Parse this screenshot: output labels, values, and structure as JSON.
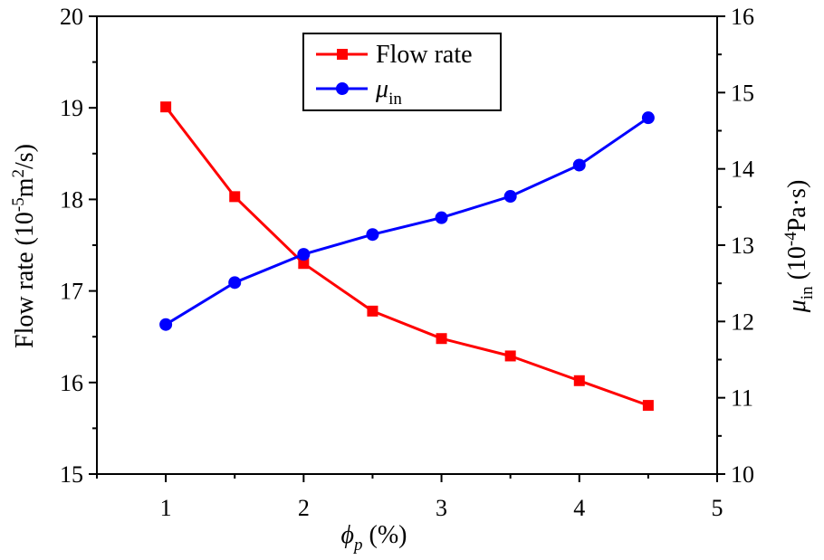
{
  "chart_data": {
    "type": "line",
    "x": [
      1,
      1.5,
      2,
      2.5,
      3,
      3.5,
      4,
      4.5
    ],
    "xlim": [
      0.5,
      5
    ],
    "x_ticks": [
      1,
      2,
      3,
      4,
      5
    ],
    "xlabel": {
      "main": "ϕ",
      "sub": "p",
      "rest": " (%)"
    },
    "grid": false,
    "legend_position": "top-center",
    "series": [
      {
        "name": "Flow rate",
        "axis": "left",
        "color": "#ff0000",
        "marker": "square",
        "values": [
          19.01,
          18.03,
          17.3,
          16.78,
          16.48,
          16.29,
          16.02,
          15.75
        ]
      },
      {
        "name": "μin",
        "name_main": "μ",
        "name_sub": "in",
        "axis": "right",
        "color": "#0000ff",
        "marker": "circle",
        "values": [
          11.96,
          12.51,
          12.88,
          13.14,
          13.36,
          13.64,
          14.05,
          14.67
        ]
      }
    ],
    "left_axis": {
      "label": {
        "pre": "Flow rate (10",
        "sup1": "-5",
        "mid": "m",
        "sup2": "2",
        "post": "/s)"
      },
      "ylim": [
        15,
        20
      ],
      "ticks": [
        15,
        16,
        17,
        18,
        19,
        20
      ]
    },
    "right_axis": {
      "label": {
        "main": "μ",
        "sub": "in",
        "pre": " (10",
        "sup": "-4",
        "post": "Pa·s)"
      },
      "ylim": [
        10,
        16
      ],
      "ticks": [
        10,
        11,
        12,
        13,
        14,
        15,
        16
      ]
    }
  }
}
